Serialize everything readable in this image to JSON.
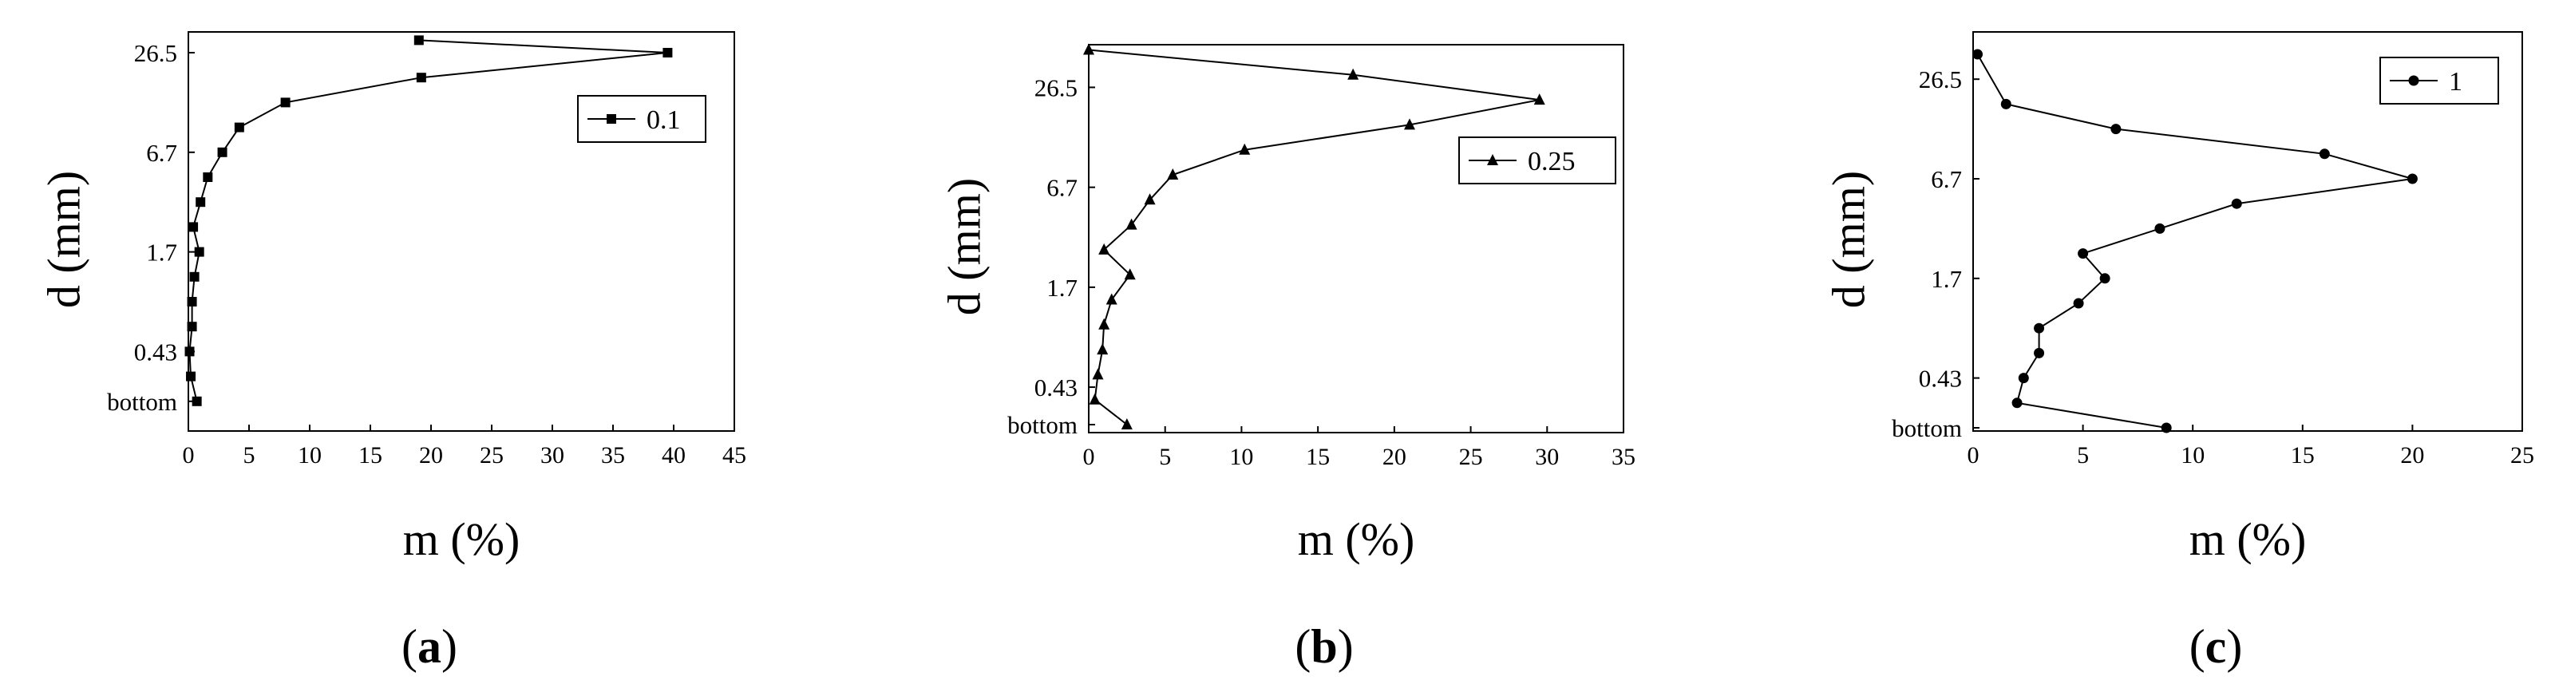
{
  "chart_data": [
    {
      "type": "line",
      "panel_label": "(a)",
      "xlabel": "m (%)",
      "ylabel": "d (mm)",
      "xlim": [
        0,
        45
      ],
      "x_ticks": [
        0,
        5,
        10,
        15,
        20,
        25,
        30,
        35,
        40,
        45
      ],
      "y_tick_labels": [
        "26.5",
        "6.7",
        "1.7",
        "0.43",
        "bottom"
      ],
      "marker": "square",
      "legend_position": "upper right",
      "series": [
        {
          "name": "0.1",
          "points": [
            [
              19.0,
              15.5
            ],
            [
              39.5,
              15.0
            ],
            [
              19.2,
              14.0
            ],
            [
              8.0,
              13.0
            ],
            [
              4.2,
              12.0
            ],
            [
              2.8,
              11.0
            ],
            [
              1.6,
              10.0
            ],
            [
              1.0,
              9.0
            ],
            [
              0.4,
              8.0
            ],
            [
              0.9,
              7.0
            ],
            [
              0.5,
              6.0
            ],
            [
              0.3,
              5.0
            ],
            [
              0.3,
              4.0
            ],
            [
              0.1,
              3.0
            ],
            [
              0.2,
              2.0
            ],
            [
              0.7,
              1.0
            ]
          ]
        }
      ]
    },
    {
      "type": "line",
      "panel_label": "(b)",
      "xlabel": "m (%)",
      "ylabel": "d (mm)",
      "xlim": [
        0,
        35
      ],
      "x_ticks": [
        0,
        5,
        10,
        15,
        20,
        25,
        30,
        35
      ],
      "y_tick_labels": [
        "26.5",
        "6.7",
        "1.7",
        "0.43",
        "bottom"
      ],
      "marker": "triangle",
      "legend_position": "upper right",
      "series": [
        {
          "name": "0.25",
          "points": [
            [
              0.0,
              15.0
            ],
            [
              17.3,
              14.0
            ],
            [
              29.5,
              13.0
            ],
            [
              21.0,
              12.0
            ],
            [
              10.2,
              11.0
            ],
            [
              5.5,
              10.0
            ],
            [
              4.0,
              9.0
            ],
            [
              2.8,
              8.0
            ],
            [
              1.0,
              7.0
            ],
            [
              2.7,
              6.0
            ],
            [
              1.5,
              5.0
            ],
            [
              1.0,
              4.0
            ],
            [
              0.9,
              3.0
            ],
            [
              0.6,
              2.0
            ],
            [
              0.4,
              1.0
            ],
            [
              2.5,
              0.0
            ]
          ]
        }
      ]
    },
    {
      "type": "line",
      "panel_label": "(c)",
      "xlabel": "m (%)",
      "ylabel": "d (mm)",
      "xlim": [
        0,
        25
      ],
      "x_ticks": [
        0,
        5,
        10,
        15,
        20,
        25
      ],
      "y_tick_labels": [
        "26.5",
        "6.7",
        "1.7",
        "0.43",
        "bottom"
      ],
      "marker": "circle",
      "legend_position": "upper right",
      "series": [
        {
          "name": "1",
          "points": [
            [
              0.2,
              15.0
            ],
            [
              1.5,
              13.0
            ],
            [
              6.5,
              12.0
            ],
            [
              16.0,
              11.0
            ],
            [
              20.0,
              10.0
            ],
            [
              12.0,
              9.0
            ],
            [
              8.5,
              8.0
            ],
            [
              5.0,
              7.0
            ],
            [
              6.0,
              6.0
            ],
            [
              4.8,
              5.0
            ],
            [
              3.0,
              4.0
            ],
            [
              3.0,
              3.0
            ],
            [
              2.3,
              2.0
            ],
            [
              2.0,
              1.0
            ],
            [
              8.8,
              0.0
            ]
          ]
        }
      ]
    }
  ]
}
